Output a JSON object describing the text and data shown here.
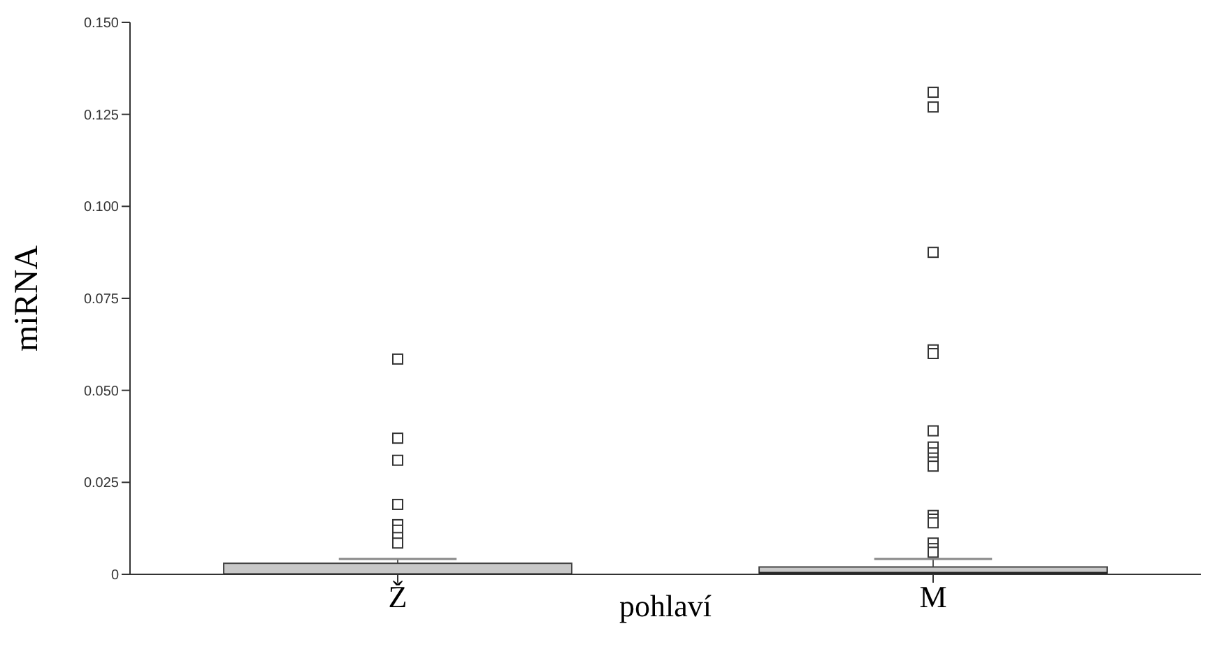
{
  "chart_data": {
    "type": "box",
    "xlabel": "pohlaví",
    "ylabel": "miRNA",
    "categories": [
      "Ž",
      "M"
    ],
    "color": "#c8c8c8",
    "ylim": [
      0,
      0.15
    ],
    "yticks": [
      {
        "value": 0,
        "label": "0"
      },
      0.025,
      {
        "value": 0.05,
        "label": "0.050"
      },
      0.075,
      {
        "value": 0.1,
        "label": "0.100"
      },
      0.125,
      {
        "value": 0.15,
        "label": "0.150"
      }
    ],
    "marker": "square",
    "boxes": [
      {
        "low": 0,
        "q1": 0,
        "median": 0,
        "q3": 0.003,
        "high": 0.0042,
        "outliers": [
          0.0585,
          0.037,
          0.031,
          0.019,
          0.0135,
          0.012,
          0.01,
          0.0085
        ]
      },
      {
        "low": 0,
        "q1": 0,
        "median": 0.0004,
        "q3": 0.002,
        "high": 0.0042,
        "outliers": [
          0.131,
          0.127,
          0.0875,
          0.061,
          0.06,
          0.039,
          0.0346,
          0.033,
          0.0316,
          0.0305,
          0.0294,
          0.016,
          0.015,
          0.014,
          0.0085,
          0.007,
          0.006
        ]
      }
    ]
  }
}
